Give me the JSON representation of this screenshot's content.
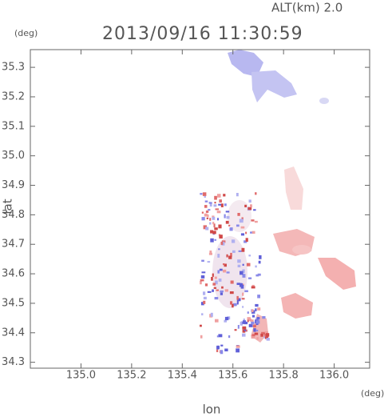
{
  "chart_data": {
    "type": "scatter",
    "subtitle": "ALT(km) 2.0",
    "title": "2013/09/16 11:30:59",
    "y_unit": "(deg)",
    "x_unit": "(deg)",
    "ylabel": "lat",
    "xlabel": "lon",
    "xlim": [
      134.8,
      136.14
    ],
    "ylim": [
      34.28,
      35.36
    ],
    "xticks": [
      {
        "value": 135,
        "label": "135.0"
      },
      135.2,
      135.4,
      135.6,
      135.8,
      {
        "value": 136,
        "label": "136.0"
      }
    ],
    "yticks": [
      34.3,
      34.4,
      34.5,
      34.6,
      34.7,
      34.8,
      34.9,
      {
        "value": 35,
        "label": "35.0"
      },
      35.1,
      35.2,
      35.3
    ]
  }
}
